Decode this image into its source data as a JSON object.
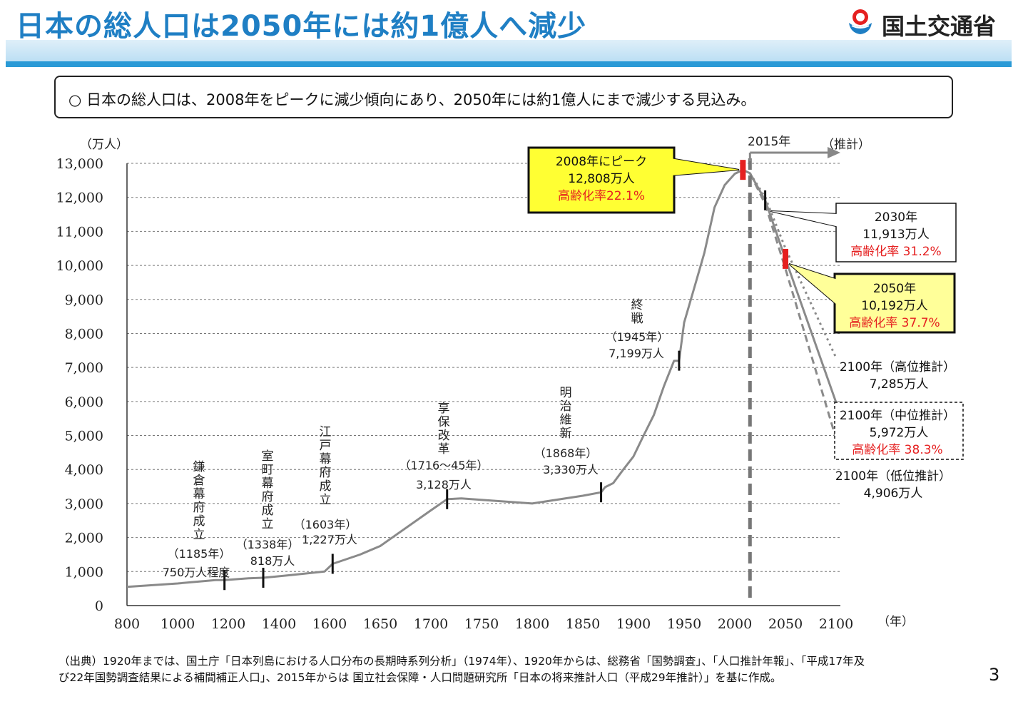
{
  "header": {
    "title": "日本の総人口は2050年には約1億人へ減少",
    "logo_text": "国土交通省",
    "logo_icon": "mlit-logo-icon"
  },
  "summary": {
    "text": "○  日本の総人口は、2008年をピークに減少傾向にあり、2050年には約1億人にまで減少する見込み。"
  },
  "chart_data": {
    "type": "line",
    "ylabel": "（万人）",
    "xlabel": "（年）",
    "ylim": [
      0,
      13000
    ],
    "xlim": [
      800,
      2100
    ],
    "x_ticks": [
      800,
      1000,
      1200,
      1400,
      1600,
      1650,
      1700,
      1750,
      1800,
      1850,
      1900,
      1950,
      2000,
      2050,
      2100
    ],
    "x_tick_labels": [
      "800",
      "1000",
      "1200",
      "1400",
      "1600",
      "1650",
      "1700",
      "1750",
      "1800",
      "1850",
      "1900",
      "1950",
      "2000",
      "2050",
      "2100"
    ],
    "y_ticks": [
      0,
      1000,
      2000,
      3000,
      4000,
      5000,
      6000,
      7000,
      8000,
      9000,
      10000,
      11000,
      12000,
      13000
    ],
    "y_tick_labels": [
      "0",
      "1,000",
      "2,000",
      "3,000",
      "4,000",
      "5,000",
      "6,000",
      "7,000",
      "8,000",
      "9,000",
      "10,000",
      "11,000",
      "12,000",
      "13,000"
    ],
    "grid": true,
    "series": [
      {
        "values": [
          [
            800,
            551
          ],
          [
            900,
            600
          ],
          [
            1000,
            650
          ],
          [
            1150,
            750
          ],
          [
            1185,
            750
          ],
          [
            1280,
            800
          ],
          [
            1338,
            818
          ],
          [
            1450,
            900
          ],
          [
            1580,
            1000
          ],
          [
            1603,
            1227
          ],
          [
            1630,
            1500
          ],
          [
            1650,
            1750
          ],
          [
            1700,
            2800
          ],
          [
            1716,
            3128
          ],
          [
            1730,
            3150
          ],
          [
            1800,
            3000
          ],
          [
            1850,
            3230
          ],
          [
            1868,
            3330
          ],
          [
            1872,
            3480
          ],
          [
            1880,
            3600
          ],
          [
            1890,
            4000
          ],
          [
            1900,
            4385
          ],
          [
            1910,
            5000
          ],
          [
            1920,
            5596
          ],
          [
            1930,
            6445
          ],
          [
            1940,
            7193
          ],
          [
            1945,
            7199
          ],
          [
            1950,
            8320
          ],
          [
            1960,
            9342
          ],
          [
            1970,
            10372
          ],
          [
            1980,
            11706
          ],
          [
            1990,
            12361
          ],
          [
            2000,
            12693
          ],
          [
            2008,
            12808
          ],
          [
            2015,
            12709
          ],
          [
            2030,
            11913
          ],
          [
            2050,
            10192
          ],
          [
            2100,
            5972
          ]
        ]
      },
      {
        "values": [
          [
            2015,
            12709
          ],
          [
            2030,
            12000
          ],
          [
            2050,
            10500
          ],
          [
            2100,
            7285
          ]
        ]
      },
      {
        "values": [
          [
            2015,
            12709
          ],
          [
            2030,
            11800
          ],
          [
            2050,
            9900
          ],
          [
            2100,
            4906
          ]
        ]
      }
    ],
    "divider": {
      "year": 2015,
      "label": "2015年",
      "projection_label": "（推計）"
    },
    "markers": [
      {
        "x": 1185,
        "y": 750,
        "color": "#111111"
      },
      {
        "x": 1338,
        "y": 818,
        "color": "#111111"
      },
      {
        "x": 1603,
        "y": 1227,
        "color": "#111111"
      },
      {
        "x": 1716,
        "y": 3128,
        "color": "#111111"
      },
      {
        "x": 1868,
        "y": 3330,
        "color": "#111111"
      },
      {
        "x": 1945,
        "y": 7199,
        "color": "#111111"
      },
      {
        "x": 2008,
        "y": 12808,
        "color": "#e52020"
      },
      {
        "x": 2030,
        "y": 11913,
        "color": "#111111"
      },
      {
        "x": 2050,
        "y": 10192,
        "color": "#e52020"
      }
    ],
    "era_labels": [
      {
        "name": "鎌倉幕府成立",
        "year": "（1185年）",
        "value": "750万人程度"
      },
      {
        "name": "室町幕府成立",
        "year": "（1338年）",
        "value": "818万人"
      },
      {
        "name": "江戸幕府成立",
        "year": "（1603年）",
        "value": "1,227万人"
      },
      {
        "name": "享保改革",
        "year": "（1716～45年）",
        "value": "3,128万人"
      },
      {
        "name": "明治維新",
        "year": "（1868年）",
        "value": "3,330万人"
      },
      {
        "name": "終戦",
        "year": "（1945年）",
        "value": "7,199万人"
      }
    ],
    "callouts": {
      "peak": {
        "line1": "2008年にピーク",
        "line2": "12,808万人",
        "line3": "高齢化率22.1%"
      },
      "y2030": {
        "line1": "2030年",
        "line2": "11,913万人",
        "line3": "高齢化率 31.2%"
      },
      "y2050": {
        "line1": "2050年",
        "line2": "10,192万人",
        "line3": "高齢化率 37.7%"
      },
      "high": {
        "line1": "2100年（高位推計）",
        "line2": "7,285万人"
      },
      "mid": {
        "line1": "2100年（中位推計）",
        "line2": "5,972万人",
        "line3": "高齢化率 38.3%"
      },
      "low": {
        "line1": "2100年（低位推計）",
        "line2": "4,906万人"
      }
    },
    "colors": {
      "line": "#8a8a8a",
      "callout_yellow": "#ffff33",
      "callout_yellow2": "#ffff99",
      "red_text": "#e52020",
      "red_marker": "#e52020"
    }
  },
  "footer": {
    "source_line1": "（出典）1920年までは、国土庁「日本列島における人口分布の長期時系列分析」（1974年）、1920年からは、総務省「国勢調査」、「人口推計年報」、「平成17年及",
    "source_line2": "び22年国勢調査結果による補間補正人口」、2015年からは 国立社会保障・人口問題研究所「日本の将来推計人口（平成29年推計）」を基に作成。",
    "page_number": "3"
  }
}
